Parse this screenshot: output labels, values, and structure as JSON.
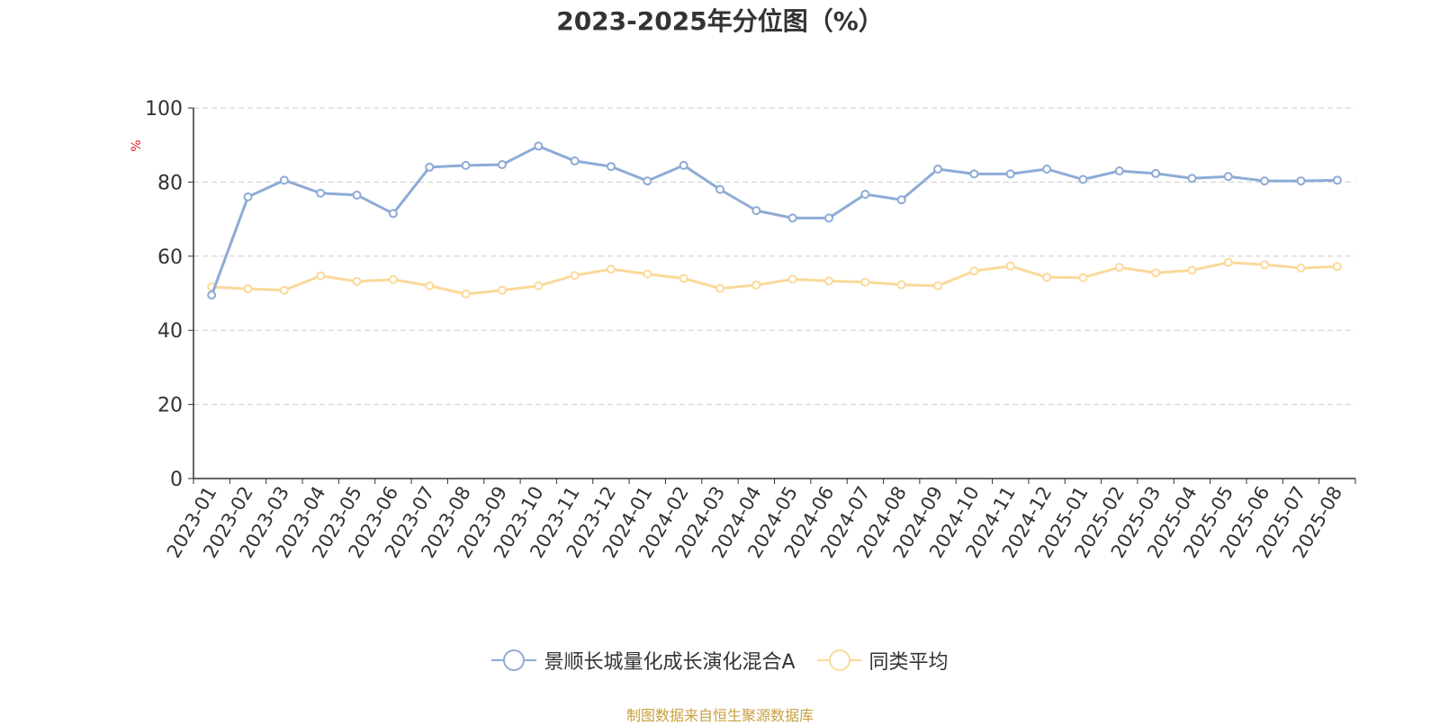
{
  "chart_data": {
    "type": "line",
    "title": "2023-2025年分位图（%）",
    "ylabel": "%",
    "xlabel": "",
    "ylim": [
      0,
      100
    ],
    "yticks": [
      0,
      20,
      40,
      60,
      80,
      100
    ],
    "grid": true,
    "legend_position": "bottom",
    "categories": [
      "2023-01",
      "2023-02",
      "2023-03",
      "2023-04",
      "2023-05",
      "2023-06",
      "2023-07",
      "2023-08",
      "2023-09",
      "2023-10",
      "2023-11",
      "2023-12",
      "2024-01",
      "2024-02",
      "2024-03",
      "2024-04",
      "2024-05",
      "2024-06",
      "2024-07",
      "2024-08",
      "2024-09",
      "2024-10",
      "2024-11",
      "2024-12",
      "2025-01",
      "2025-02",
      "2025-03",
      "2025-04",
      "2025-05",
      "2025-06",
      "2025-07",
      "2025-08"
    ],
    "series": [
      {
        "name": "景顺长城量化成长演化混合A",
        "color": "#8eabd6",
        "values": [
          49.5,
          76.0,
          80.5,
          77.0,
          76.5,
          71.5,
          84.0,
          84.5,
          84.7,
          89.7,
          85.7,
          84.2,
          80.3,
          84.5,
          78.0,
          72.3,
          70.3,
          70.3,
          76.7,
          75.2,
          83.5,
          82.2,
          82.2,
          83.5,
          80.7,
          83.0,
          82.3,
          81.0,
          81.5,
          80.3,
          80.3,
          80.5
        ]
      },
      {
        "name": "同类平均",
        "color": "#fbd99a",
        "values": [
          51.7,
          51.2,
          50.8,
          54.7,
          53.2,
          53.7,
          52.0,
          49.8,
          50.8,
          52.0,
          54.8,
          56.5,
          55.2,
          54.0,
          51.3,
          52.2,
          53.8,
          53.3,
          53.0,
          52.3,
          52.0,
          56.0,
          57.3,
          54.3,
          54.2,
          57.0,
          55.5,
          56.2,
          58.3,
          57.7,
          56.8,
          57.2
        ]
      }
    ]
  },
  "source_text": "制图数据来自恒生聚源数据库"
}
